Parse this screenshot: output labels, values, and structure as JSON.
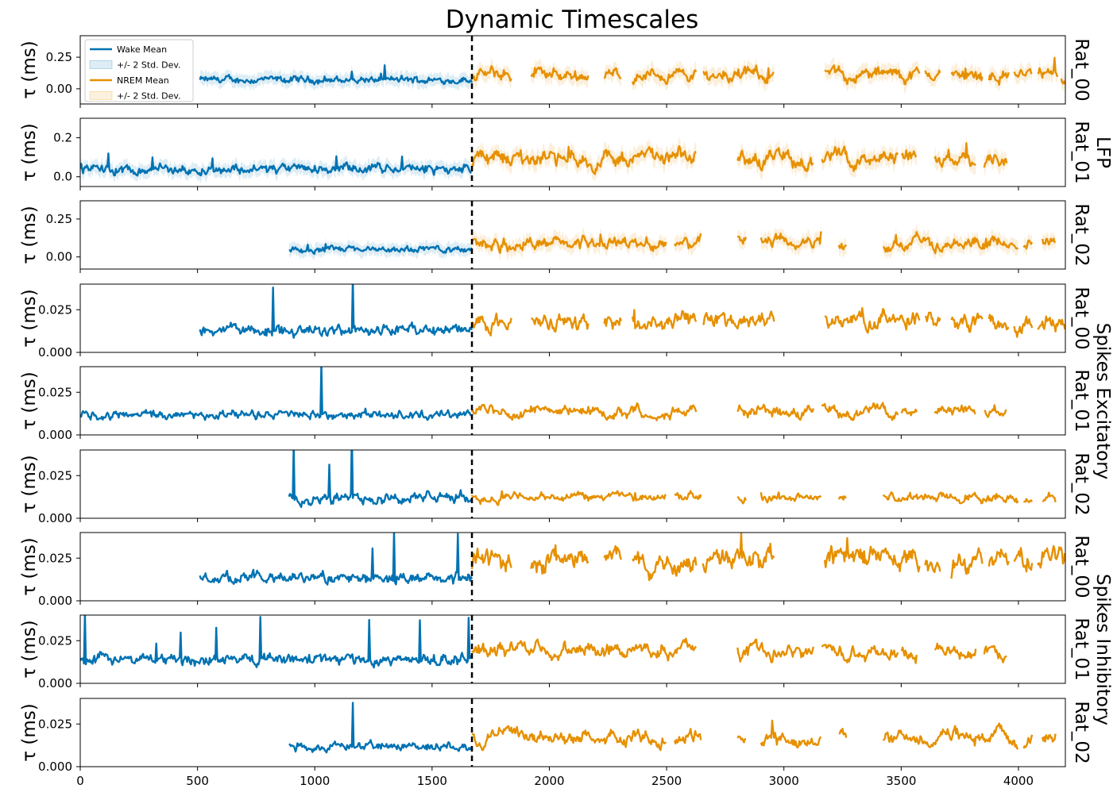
{
  "chart_data": {
    "type": "line",
    "title": "Dynamic Timescales",
    "xlim": [
      0,
      4200
    ],
    "xticks": [
      "0",
      "500",
      "1000",
      "1500",
      "2000",
      "2500",
      "3000",
      "3500",
      "4000"
    ],
    "vline_x": 1670,
    "ylabel": "τ (ms)",
    "legend": {
      "placement": "top-left",
      "entries": [
        "Wake Mean",
        "+/- 2 Std. Dev.",
        "NREM Mean",
        "+/- 2 Std. Dev."
      ]
    },
    "colors": {
      "wake": "#0072b2",
      "nrem": "#e69000"
    },
    "group_labels": [
      "LFP",
      "Spikes Excitatory",
      "Spikes Inhibitory"
    ],
    "panels": [
      {
        "group": "LFP",
        "rat": "Rat_00",
        "ylim": [
          -0.12,
          0.42
        ],
        "yticks": [
          "0.25",
          "0.00"
        ],
        "ytick_values": [
          0.25,
          0.0
        ],
        "wake_start": 510,
        "base": 0.07,
        "amp": 0.035,
        "spike_amp": 0.06,
        "band": 0.05,
        "nrem_base": 0.11,
        "nrem_amp": 0.06,
        "gaps": [
          [
            1840,
            1920
          ],
          [
            2170,
            2230
          ],
          [
            2310,
            2350
          ],
          [
            2630,
            2650
          ],
          [
            2960,
            3170
          ],
          [
            3580,
            3600
          ],
          [
            3670,
            3710
          ],
          [
            3850,
            3870
          ],
          [
            3960,
            3980
          ],
          [
            4060,
            4080
          ],
          [
            4170,
            4180
          ]
        ],
        "nrem_end": 4200,
        "has_band": true
      },
      {
        "group": "LFP",
        "rat": "Rat_01",
        "ylim": [
          -0.05,
          0.3
        ],
        "yticks": [
          "0.2",
          "0.0"
        ],
        "ytick_values": [
          0.2,
          0.0
        ],
        "wake_start": 0,
        "base": 0.04,
        "amp": 0.03,
        "spike_amp": 0.07,
        "band": 0.035,
        "nrem_base": 0.095,
        "nrem_amp": 0.05,
        "gaps": [
          [
            2630,
            2800
          ],
          [
            3130,
            3160
          ],
          [
            3490,
            3500
          ],
          [
            3570,
            3640
          ],
          [
            3820,
            3850
          ]
        ],
        "nrem_end": 3950,
        "has_band": true
      },
      {
        "group": "LFP",
        "rat": "Rat_02",
        "ylim": [
          -0.08,
          0.37
        ],
        "yticks": [
          "0.25",
          "0.00"
        ],
        "ytick_values": [
          0.25,
          0.0
        ],
        "wake_start": 890,
        "base": 0.05,
        "amp": 0.025,
        "spike_amp": 0.05,
        "band": 0.04,
        "nrem_base": 0.09,
        "nrem_amp": 0.05,
        "gaps": [
          [
            2500,
            2530
          ],
          [
            2650,
            2800
          ],
          [
            2840,
            2900
          ],
          [
            3160,
            3230
          ],
          [
            3270,
            3420
          ],
          [
            4000,
            4020
          ],
          [
            4060,
            4100
          ]
        ],
        "nrem_end": 4160,
        "has_band": true
      },
      {
        "group": "Spikes Excitatory",
        "rat": "Rat_00",
        "ylim": [
          0,
          0.04
        ],
        "yticks": [
          "0.025",
          "0.000"
        ],
        "ytick_values": [
          0.025,
          0.0
        ],
        "wake_start": 510,
        "base": 0.013,
        "amp": 0.004,
        "spike_amp": 0.025,
        "band": 0,
        "nrem_base": 0.018,
        "nrem_amp": 0.006,
        "gaps": [
          [
            1840,
            1920
          ],
          [
            2170,
            2230
          ],
          [
            2310,
            2350
          ],
          [
            2630,
            2650
          ],
          [
            2960,
            3170
          ],
          [
            3580,
            3600
          ],
          [
            3670,
            3710
          ],
          [
            3850,
            3870
          ],
          [
            3960,
            3980
          ],
          [
            4060,
            4080
          ]
        ],
        "nrem_end": 4200,
        "has_band": false
      },
      {
        "group": "Spikes Excitatory",
        "rat": "Rat_01",
        "ylim": [
          0,
          0.04
        ],
        "yticks": [
          "0.025",
          "0.000"
        ],
        "ytick_values": [
          0.025,
          0.0
        ],
        "wake_start": 0,
        "base": 0.012,
        "amp": 0.003,
        "spike_amp": 0.028,
        "band": 0,
        "nrem_base": 0.014,
        "nrem_amp": 0.004,
        "gaps": [
          [
            2630,
            2800
          ],
          [
            3130,
            3160
          ],
          [
            3490,
            3500
          ],
          [
            3570,
            3640
          ],
          [
            3820,
            3850
          ]
        ],
        "nrem_end": 3950,
        "has_band": false
      },
      {
        "group": "Spikes Excitatory",
        "rat": "Rat_02",
        "ylim": [
          0,
          0.04
        ],
        "yticks": [
          "0.025",
          "0.000"
        ],
        "ytick_values": [
          0.025,
          0.0
        ],
        "wake_start": 890,
        "base": 0.012,
        "amp": 0.004,
        "spike_amp": 0.028,
        "band": 0,
        "nrem_base": 0.012,
        "nrem_amp": 0.003,
        "gaps": [
          [
            2500,
            2530
          ],
          [
            2650,
            2800
          ],
          [
            2840,
            2900
          ],
          [
            3160,
            3230
          ],
          [
            3270,
            3420
          ],
          [
            4000,
            4020
          ],
          [
            4060,
            4100
          ]
        ],
        "nrem_end": 4160,
        "has_band": false
      },
      {
        "group": "Spikes Inhibitory",
        "rat": "Rat_00",
        "ylim": [
          0,
          0.04
        ],
        "yticks": [
          "0.025",
          "0.000"
        ],
        "ytick_values": [
          0.025,
          0.0
        ],
        "wake_start": 510,
        "base": 0.013,
        "amp": 0.004,
        "spike_amp": 0.028,
        "band": 0,
        "nrem_base": 0.024,
        "nrem_amp": 0.008,
        "gaps": [
          [
            1840,
            1920
          ],
          [
            2170,
            2230
          ],
          [
            2310,
            2350
          ],
          [
            2630,
            2650
          ],
          [
            2960,
            3170
          ],
          [
            3580,
            3600
          ],
          [
            3670,
            3710
          ],
          [
            3850,
            3870
          ],
          [
            3960,
            3980
          ],
          [
            4060,
            4080
          ]
        ],
        "nrem_end": 4200,
        "has_band": false
      },
      {
        "group": "Spikes Inhibitory",
        "rat": "Rat_01",
        "ylim": [
          0,
          0.04
        ],
        "yticks": [
          "0.025",
          "0.000"
        ],
        "ytick_values": [
          0.025,
          0.0
        ],
        "wake_start": 0,
        "base": 0.014,
        "amp": 0.004,
        "spike_amp": 0.02,
        "band": 0,
        "nrem_base": 0.019,
        "nrem_amp": 0.005,
        "gaps": [
          [
            2630,
            2800
          ],
          [
            3130,
            3160
          ],
          [
            3490,
            3500
          ],
          [
            3570,
            3640
          ],
          [
            3820,
            3850
          ]
        ],
        "nrem_end": 3950,
        "has_band": false
      },
      {
        "group": "Spikes Inhibitory",
        "rat": "Rat_02",
        "ylim": [
          0,
          0.04
        ],
        "yticks": [
          "0.025",
          "0.000"
        ],
        "ytick_values": [
          0.025,
          0.0
        ],
        "wake_start": 890,
        "base": 0.012,
        "amp": 0.003,
        "spike_amp": 0.022,
        "band": 0,
        "nrem_base": 0.017,
        "nrem_amp": 0.005,
        "gaps": [
          [
            2500,
            2530
          ],
          [
            2650,
            2800
          ],
          [
            2840,
            2900
          ],
          [
            3160,
            3230
          ],
          [
            3270,
            3420
          ],
          [
            4000,
            4020
          ],
          [
            4060,
            4100
          ]
        ],
        "nrem_end": 4160,
        "has_band": false
      }
    ]
  }
}
